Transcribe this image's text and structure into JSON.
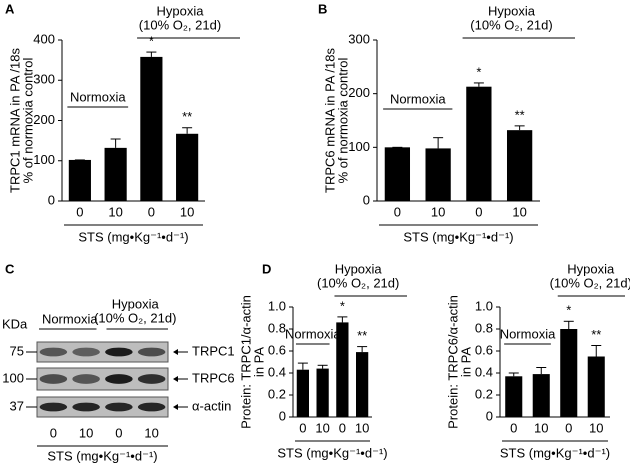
{
  "chart_data": [
    {
      "type": "bar",
      "panel": "A",
      "ylabel": [
        "TRPC1 mRNA in PA /18s",
        "% of normoxia control"
      ],
      "xlabel": "STS (mg•Kg⁻¹•d⁻¹)",
      "categories": [
        "0",
        "10",
        "0",
        "10"
      ],
      "values": [
        102,
        132,
        358,
        167
      ],
      "errors": [
        0,
        22,
        12,
        15
      ],
      "value_annotations": [
        null,
        null,
        "*",
        "**"
      ],
      "groups": [
        "Normoxia",
        [
          "Hypoxia",
          "(10% O₂, 21d)"
        ]
      ],
      "color": "#000000",
      "ylim": [
        0,
        400
      ],
      "yticks": [
        0,
        100,
        200,
        300,
        400
      ]
    },
    {
      "type": "bar",
      "panel": "B",
      "ylabel": [
        "TRPC6 mRNA in PA /18s",
        "% of normoxia control"
      ],
      "xlabel": "STS (mg•Kg⁻¹•d⁻¹)",
      "categories": [
        "0",
        "10",
        "0",
        "10"
      ],
      "values": [
        100,
        98,
        213,
        132
      ],
      "errors": [
        0,
        20,
        7,
        8
      ],
      "value_annotations": [
        null,
        null,
        "*",
        "**"
      ],
      "groups": [
        "Normoxia",
        [
          "Hypoxia",
          "(10% O₂, 21d)"
        ]
      ],
      "color": "#000000",
      "ylim": [
        0,
        300
      ],
      "yticks": [
        0,
        100,
        200,
        300
      ]
    },
    {
      "type": "bar",
      "panel": "D",
      "ylabel": [
        "Protein: TRPC1/α-actin",
        "in PA"
      ],
      "xlabel": "STS (mg•Kg⁻¹•d⁻¹)",
      "categories": [
        "0",
        "10",
        "0",
        "10"
      ],
      "values": [
        0.43,
        0.44,
        0.86,
        0.59
      ],
      "errors": [
        0.06,
        0.03,
        0.05,
        0.05
      ],
      "value_annotations": [
        null,
        null,
        "*",
        "**"
      ],
      "groups": [
        "Normoxia",
        [
          "Hypoxia",
          "(10% O₂, 21d)"
        ]
      ],
      "color": "#000000",
      "ylim": [
        0,
        1
      ],
      "yticks": [
        0,
        0.2,
        0.4,
        0.6,
        0.8,
        {
          "value": 1,
          "label": "1.0"
        }
      ]
    },
    {
      "type": "bar",
      "ylabel": [
        "Protein: TRPC6/α-actin",
        "in PA"
      ],
      "xlabel": "STS (mg•Kg⁻¹•d⁻¹)",
      "categories": [
        "0",
        "10",
        "0",
        "10"
      ],
      "values": [
        0.37,
        0.39,
        0.8,
        0.55
      ],
      "errors": [
        0.03,
        0.06,
        0.07,
        0.1
      ],
      "value_annotations": [
        null,
        null,
        "*",
        "**"
      ],
      "groups": [
        "Normoxia",
        [
          "Hypoxia",
          "(10% O₂, 21d)"
        ]
      ],
      "color": "#000000",
      "ylim": [
        0,
        1
      ],
      "yticks": [
        0,
        0.2,
        0.4,
        0.6,
        0.8,
        {
          "value": 1,
          "label": "1.0"
        }
      ]
    }
  ],
  "blot": {
    "panel": "C",
    "unit": "KDa",
    "markers": [
      "75",
      "100",
      "37"
    ],
    "proteins": [
      "TRPC1",
      "TRPC6",
      "α-actin"
    ],
    "groups": [
      "Normoxia",
      [
        "Hypoxia",
        "(10% O₂, 21d)"
      ]
    ],
    "categories": [
      "0",
      "10",
      "0",
      "10"
    ],
    "xlabel": "STS (mg•Kg⁻¹•d⁻¹)"
  }
}
